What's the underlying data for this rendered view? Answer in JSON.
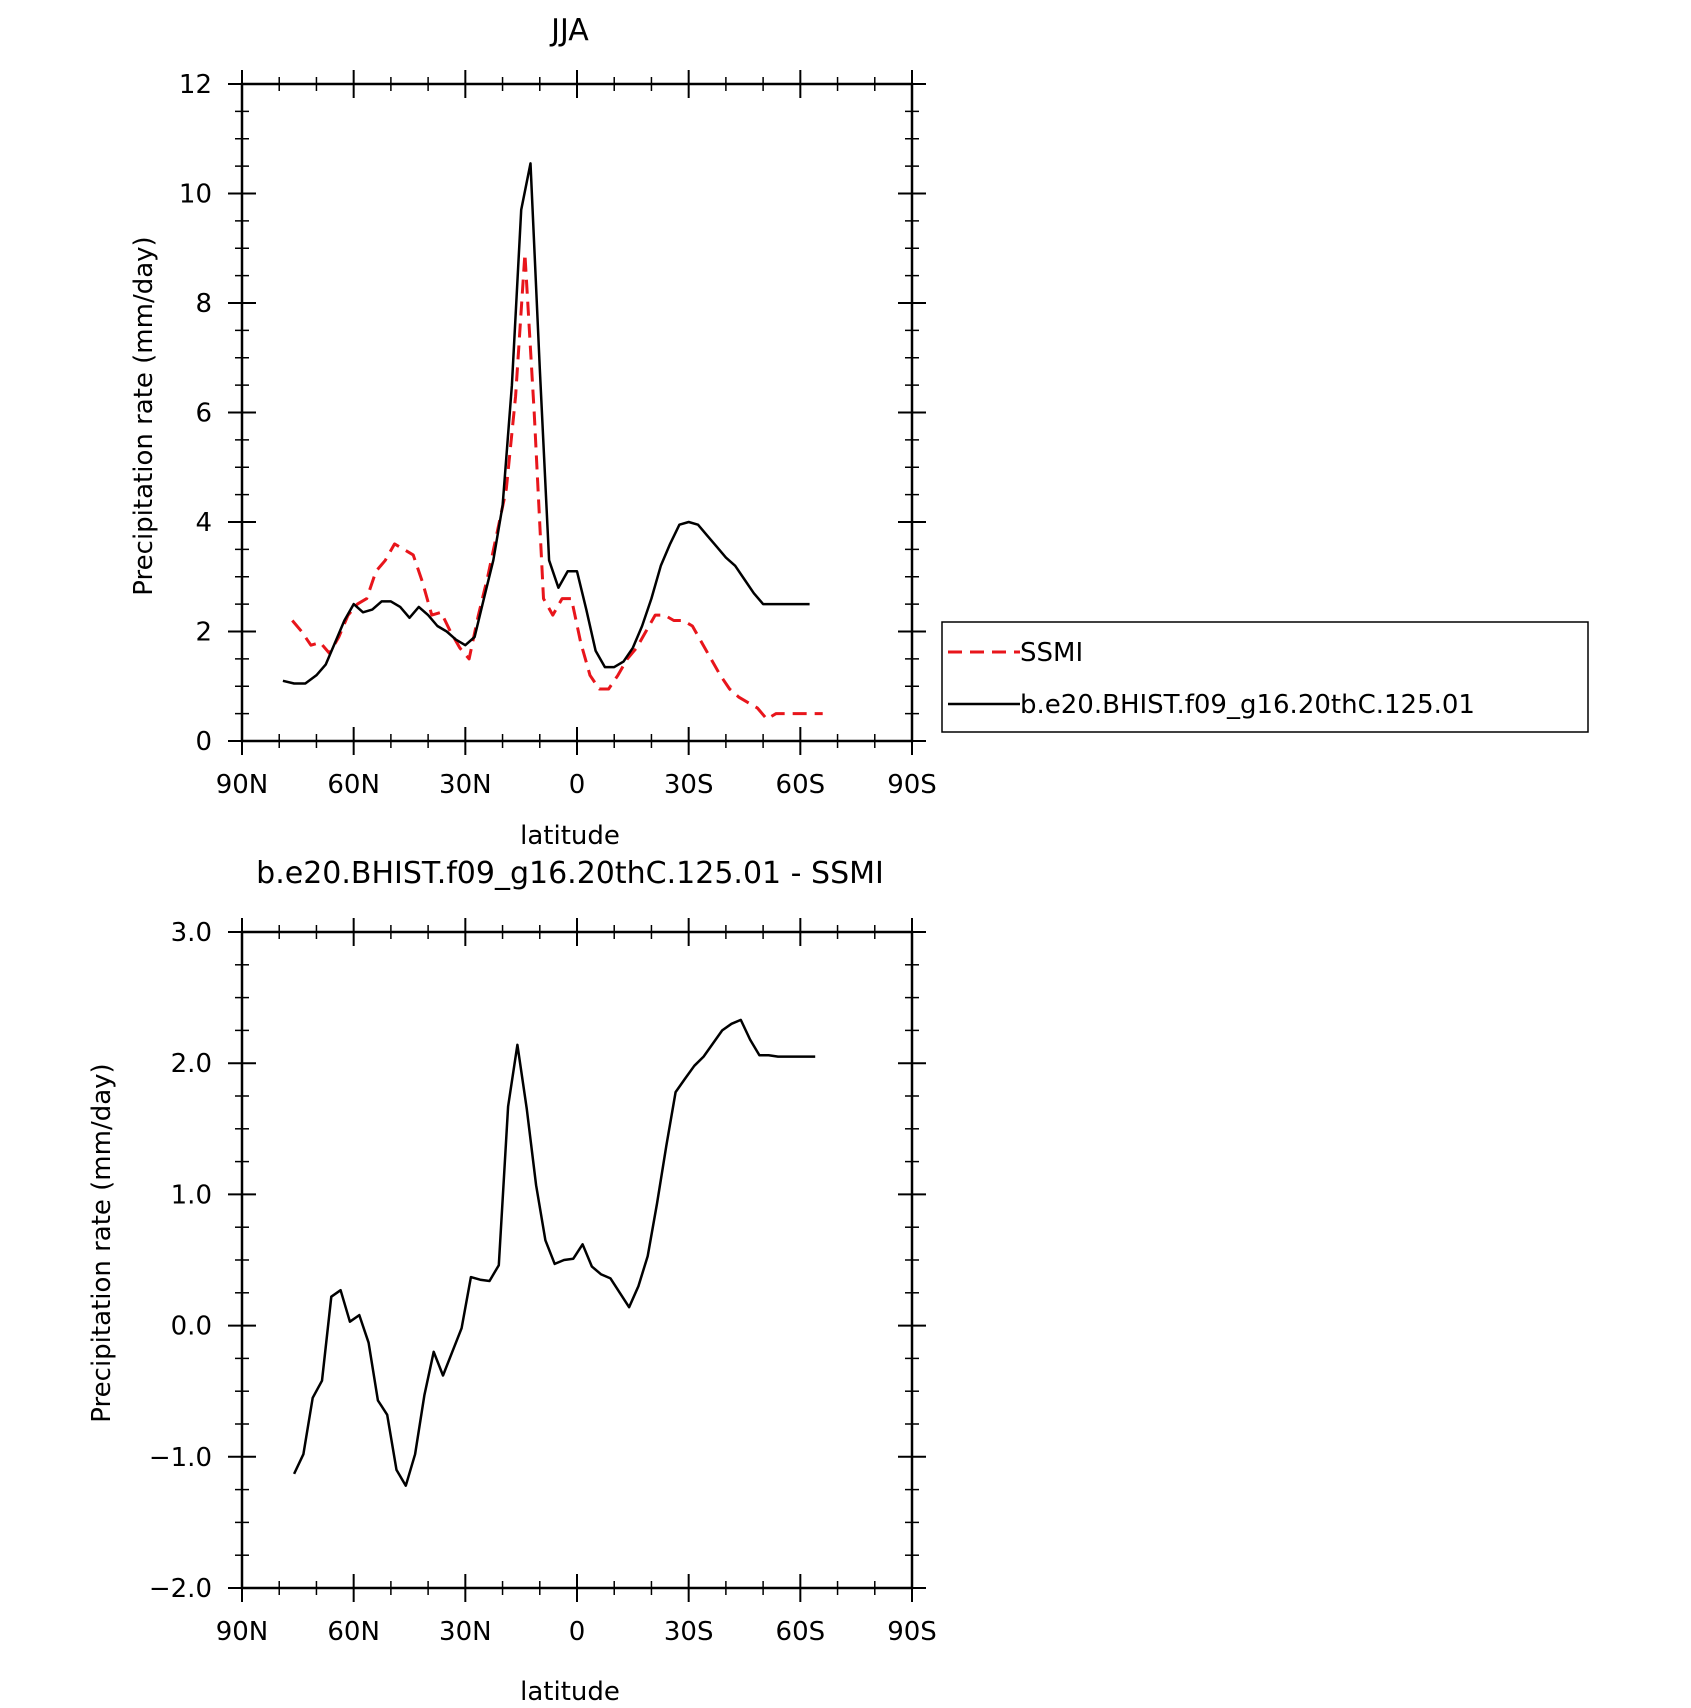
{
  "chart_data": [
    {
      "type": "line",
      "title": "JJA",
      "xlabel": "latitude",
      "ylabel": "Precipitation rate (mm/day)",
      "xlim": [
        90,
        -90
      ],
      "ylim": [
        0,
        12
      ],
      "xticks": [
        90,
        60,
        30,
        0,
        -30,
        -60,
        -90
      ],
      "xtick_labels": [
        "90N",
        "60N",
        "30N",
        "0",
        "30S",
        "60S",
        "90S"
      ],
      "yticks": [
        0,
        2,
        4,
        6,
        8,
        10,
        12
      ],
      "ytick_labels": [
        "0",
        "2",
        "4",
        "6",
        "8",
        "10",
        "12"
      ],
      "legend_position": "right",
      "series": [
        {
          "name": "SSMI",
          "color": "#e8151b",
          "dash": "dashed",
          "x": [
            76.5,
            74.0,
            71.5,
            69.0,
            66.5,
            64.0,
            61.5,
            59.0,
            56.5,
            54.0,
            51.5,
            49.0,
            46.5,
            44.0,
            41.5,
            39.0,
            36.5,
            34.0,
            31.5,
            29.0,
            26.5,
            24.0,
            21.5,
            19.0,
            16.5,
            14.0,
            11.5,
            9.0,
            6.5,
            4.0,
            1.5,
            -1.0,
            -3.5,
            -6.0,
            -8.5,
            -11.0,
            -13.5,
            -16.0,
            -18.5,
            -21.0,
            -23.5,
            -26.0,
            -28.5,
            -31.0,
            -33.5,
            -36.0,
            -38.5,
            -41.0,
            -43.5,
            -46.0,
            -48.5,
            -51.0,
            -53.5,
            -56.0,
            -58.5,
            -61.0,
            -63.5,
            -66.0
          ],
          "values": [
            2.2,
            2.0,
            1.75,
            1.8,
            1.6,
            1.9,
            2.3,
            2.5,
            2.6,
            3.1,
            3.3,
            3.6,
            3.5,
            3.4,
            2.9,
            2.3,
            2.35,
            2.0,
            1.7,
            1.5,
            2.3,
            3.0,
            3.8,
            4.6,
            6.3,
            8.9,
            6.0,
            2.6,
            2.3,
            2.6,
            2.6,
            1.8,
            1.2,
            0.95,
            0.95,
            1.2,
            1.5,
            1.7,
            2.0,
            2.3,
            2.3,
            2.2,
            2.2,
            2.1,
            1.8,
            1.5,
            1.2,
            0.95,
            0.8,
            0.7,
            0.6,
            0.4,
            0.5,
            0.5,
            0.5,
            0.5,
            0.5,
            0.5
          ]
        },
        {
          "name": "b.e20.BHIST.f09_g16.20thC.125.01",
          "color": "#000000",
          "dash": "solid",
          "x": [
            79.0,
            76.0,
            73.0,
            70.0,
            67.5,
            65.0,
            62.5,
            60.0,
            57.5,
            55.0,
            52.5,
            50.0,
            47.5,
            45.0,
            42.5,
            40.0,
            37.5,
            35.0,
            32.5,
            30.0,
            27.5,
            25.0,
            22.5,
            20.0,
            17.5,
            15.0,
            12.5,
            10.0,
            7.5,
            5.0,
            2.5,
            0.0,
            -2.5,
            -5.0,
            -7.5,
            -10.0,
            -12.5,
            -15.0,
            -17.5,
            -20.0,
            -22.5,
            -25.0,
            -27.5,
            -30.0,
            -32.5,
            -35.0,
            -37.5,
            -40.0,
            -42.5,
            -45.0,
            -47.5,
            -50.0,
            -52.5,
            -55.0,
            -57.5,
            -60.0,
            -62.5
          ],
          "values": [
            1.1,
            1.05,
            1.05,
            1.2,
            1.4,
            1.8,
            2.2,
            2.5,
            2.35,
            2.4,
            2.55,
            2.55,
            2.45,
            2.25,
            2.45,
            2.3,
            2.1,
            2.0,
            1.85,
            1.75,
            1.9,
            2.6,
            3.3,
            4.3,
            6.5,
            9.7,
            10.55,
            6.8,
            3.3,
            2.8,
            3.1,
            3.1,
            2.4,
            1.65,
            1.35,
            1.35,
            1.45,
            1.7,
            2.1,
            2.6,
            3.2,
            3.6,
            3.95,
            4.0,
            3.95,
            3.75,
            3.55,
            3.35,
            3.2,
            2.95,
            2.7,
            2.5,
            2.5,
            2.5,
            2.5,
            2.5,
            2.5
          ]
        }
      ]
    },
    {
      "type": "line",
      "title": "b.e20.BHIST.f09_g16.20thC.125.01 - SSMI",
      "xlabel": "latitude",
      "ylabel": "Precipitation rate (mm/day)",
      "xlim": [
        90,
        -90
      ],
      "ylim": [
        -2.0,
        3.0
      ],
      "xticks": [
        90,
        60,
        30,
        0,
        -30,
        -60,
        -90
      ],
      "xtick_labels": [
        "90N",
        "60N",
        "30N",
        "0",
        "30S",
        "60S",
        "90S"
      ],
      "yticks": [
        -2.0,
        -1.0,
        0.0,
        1.0,
        2.0,
        3.0
      ],
      "ytick_labels": [
        "−2.0",
        "−1.0",
        "0.0",
        "1.0",
        "2.0",
        "3.0"
      ],
      "series": [
        {
          "color": "#000000",
          "dash": "solid",
          "x": [
            76.0,
            73.5,
            71.0,
            68.5,
            66.0,
            63.5,
            61.0,
            58.5,
            56.0,
            53.5,
            51.0,
            48.5,
            46.0,
            43.5,
            41.0,
            38.5,
            36.0,
            33.5,
            31.0,
            28.5,
            26.0,
            23.5,
            21.0,
            18.5,
            16.0,
            13.5,
            11.0,
            8.5,
            6.0,
            3.5,
            1.0,
            -1.5,
            -4.0,
            -6.5,
            -9.0,
            -11.5,
            -14.0,
            -16.5,
            -19.0,
            -21.5,
            -24.0,
            -26.5,
            -29.0,
            -31.5,
            -34.0,
            -36.5,
            -39.0,
            -41.5,
            -44.0,
            -46.5,
            -49.0,
            -51.5,
            -54.0,
            -56.5,
            -59.0,
            -61.5,
            -64.0
          ],
          "values": [
            -1.13,
            -0.98,
            -0.55,
            -0.42,
            0.22,
            0.27,
            0.03,
            0.08,
            -0.13,
            -0.57,
            -0.68,
            -1.1,
            -1.22,
            -0.98,
            -0.53,
            -0.2,
            -0.38,
            -0.2,
            -0.02,
            0.37,
            0.35,
            0.34,
            0.46,
            1.67,
            2.14,
            1.65,
            1.07,
            0.65,
            0.47,
            0.5,
            0.51,
            0.62,
            0.45,
            0.39,
            0.36,
            0.25,
            0.14,
            0.3,
            0.53,
            0.93,
            1.37,
            1.78,
            1.88,
            1.98,
            2.05,
            2.15,
            2.25,
            2.3,
            2.33,
            2.18,
            2.06,
            2.06,
            2.05,
            2.05,
            2.05,
            2.05,
            2.05
          ]
        }
      ]
    }
  ]
}
